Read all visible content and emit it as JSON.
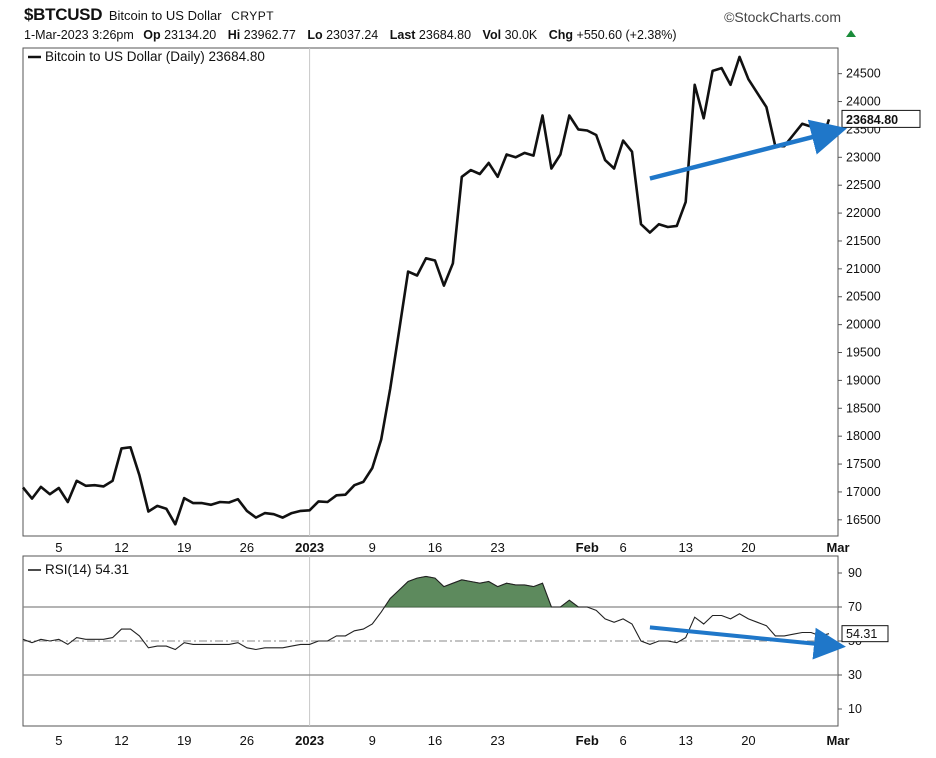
{
  "header": {
    "symbol": "$BTCUSD",
    "name": "Bitcoin to US Dollar",
    "exchange": "CRYPT",
    "date": "1-Mar-2023 3:26pm",
    "op_label": "Op",
    "op": "23134.20",
    "hi_label": "Hi",
    "hi": "23962.77",
    "lo_label": "Lo",
    "lo": "23037.24",
    "last_label": "Last",
    "last": "23684.80",
    "vol_label": "Vol",
    "vol": "30.0K",
    "chg_label": "Chg",
    "chg": "+550.60 (+2.38%)",
    "brand": "©StockCharts.com"
  },
  "chart_data": [
    {
      "type": "line",
      "legend": "Bitcoin to US Dollar (Daily) 23684.80",
      "last_value_label": "23684.80",
      "yticks": [
        16500,
        17000,
        17500,
        18000,
        18500,
        19000,
        19500,
        20000,
        20500,
        21000,
        21500,
        22000,
        22500,
        23000,
        23500,
        24000,
        24500
      ],
      "ytick_labels": [
        "16500",
        "17000",
        "17500",
        "18000",
        "18500",
        "19000",
        "19500",
        "20000",
        "20500",
        "21000",
        "21500",
        "22000",
        "22500",
        "23000",
        "23500",
        "24000",
        "24500"
      ],
      "xtick_labels": [
        "5",
        "12",
        "19",
        "26",
        "2023",
        "9",
        "16",
        "23",
        "Feb",
        "6",
        "13",
        "20",
        "Mar"
      ],
      "xtick_days": [
        4,
        11,
        18,
        25,
        32,
        39,
        46,
        53,
        63,
        67,
        74,
        81,
        91
      ],
      "x_day_start": "2022-12-01",
      "y": [
        17080,
        16880,
        17090,
        16960,
        17070,
        16820,
        17200,
        17110,
        17120,
        17100,
        17200,
        17780,
        17800,
        17300,
        16650,
        16750,
        16700,
        16420,
        16890,
        16800,
        16800,
        16770,
        16820,
        16810,
        16870,
        16660,
        16540,
        16620,
        16600,
        16540,
        16620,
        16660,
        16670,
        16830,
        16820,
        16940,
        16950,
        17120,
        17180,
        17430,
        17940,
        18850,
        19900,
        20950,
        20880,
        21190,
        21150,
        20700,
        21100,
        22650,
        22770,
        22700,
        22900,
        22650,
        23050,
        23000,
        23080,
        23030,
        23750,
        22800,
        23050,
        23750,
        23500,
        23480,
        23400,
        22950,
        22800,
        23300,
        23100,
        21800,
        21650,
        21800,
        21750,
        21770,
        22200,
        24300,
        23700,
        24550,
        24600,
        24300,
        24800,
        24400,
        24150,
        23900,
        23200,
        23200,
        23400,
        23600,
        23550,
        23200,
        23680
      ],
      "arrow": {
        "from": [
          70,
          22620
        ],
        "to": [
          91,
          23480
        ],
        "color": "#1f77c9"
      }
    },
    {
      "type": "line",
      "legend": "RSI(14) 54.31",
      "last_value_label": "54.31",
      "yticks": [
        10,
        30,
        50,
        70,
        90
      ],
      "ytick_labels": [
        "10",
        "30",
        "50",
        "70",
        "90"
      ],
      "xtick_labels": [
        "5",
        "12",
        "19",
        "26",
        "2023",
        "9",
        "16",
        "23",
        "Feb",
        "6",
        "13",
        "20",
        "Mar"
      ],
      "xtick_days": [
        4,
        11,
        18,
        25,
        32,
        39,
        46,
        53,
        63,
        67,
        74,
        81,
        91
      ],
      "overbought": 70,
      "oversold": 30,
      "midline": 50,
      "y": [
        51,
        49,
        51,
        50,
        51,
        48,
        52,
        51,
        51,
        51,
        52,
        57,
        57,
        53,
        46,
        47,
        47,
        45,
        49,
        48,
        48,
        48,
        48,
        48,
        49,
        46,
        45,
        46,
        46,
        46,
        47,
        48,
        48,
        50,
        50,
        53,
        53,
        56,
        57,
        60,
        67,
        75,
        80,
        85,
        87,
        88,
        87,
        82,
        84,
        86,
        85,
        84,
        85,
        82,
        84,
        83,
        83,
        82,
        84,
        70,
        70,
        74,
        70,
        70,
        68,
        63,
        61,
        63,
        60,
        50,
        48,
        50,
        50,
        49,
        52,
        64,
        60,
        65,
        65,
        63,
        66,
        63,
        61,
        59,
        53,
        53,
        54,
        55,
        55,
        53,
        54.31
      ],
      "arrow": {
        "from": [
          70,
          58
        ],
        "to": [
          91,
          47
        ],
        "color": "#1f77c9"
      },
      "fill_color": "#5d8a5d"
    }
  ]
}
